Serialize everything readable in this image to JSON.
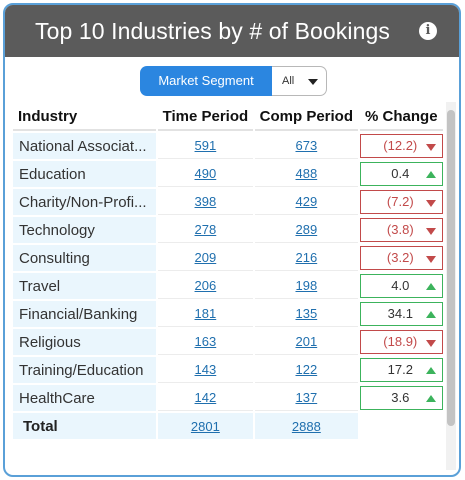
{
  "header": {
    "title": "Top 10 Industries by # of Bookings",
    "info_icon": "info-icon"
  },
  "filter": {
    "segment_label": "Market Segment",
    "selected": "All"
  },
  "table": {
    "columns": [
      "Industry",
      "Time Period",
      "Comp Period",
      "% Change"
    ],
    "rows": [
      {
        "industry": "National Associat...",
        "time": "591",
        "comp": "673",
        "change": "(12.2)",
        "dir": "down"
      },
      {
        "industry": "Education",
        "time": "490",
        "comp": "488",
        "change": "0.4",
        "dir": "up"
      },
      {
        "industry": "Charity/Non-Profi...",
        "time": "398",
        "comp": "429",
        "change": "(7.2)",
        "dir": "down"
      },
      {
        "industry": "Technology",
        "time": "278",
        "comp": "289",
        "change": "(3.8)",
        "dir": "down"
      },
      {
        "industry": "Consulting",
        "time": "209",
        "comp": "216",
        "change": "(3.2)",
        "dir": "down"
      },
      {
        "industry": "Travel",
        "time": "206",
        "comp": "198",
        "change": "4.0",
        "dir": "up"
      },
      {
        "industry": "Financial/Banking",
        "time": "181",
        "comp": "135",
        "change": "34.1",
        "dir": "up"
      },
      {
        "industry": "Religious",
        "time": "163",
        "comp": "201",
        "change": "(18.9)",
        "dir": "down"
      },
      {
        "industry": "Training/Education",
        "time": "143",
        "comp": "122",
        "change": "17.2",
        "dir": "up"
      },
      {
        "industry": "HealthCare",
        "time": "142",
        "comp": "137",
        "change": "3.6",
        "dir": "up"
      }
    ],
    "total": {
      "label": "Total",
      "time": "2801",
      "comp": "2888"
    }
  },
  "colors": {
    "header_bg": "#5b5b5b",
    "accent": "#2b86e0",
    "negative": "#c24a4a",
    "positive": "#3cb35c",
    "link": "#1f6fae"
  }
}
